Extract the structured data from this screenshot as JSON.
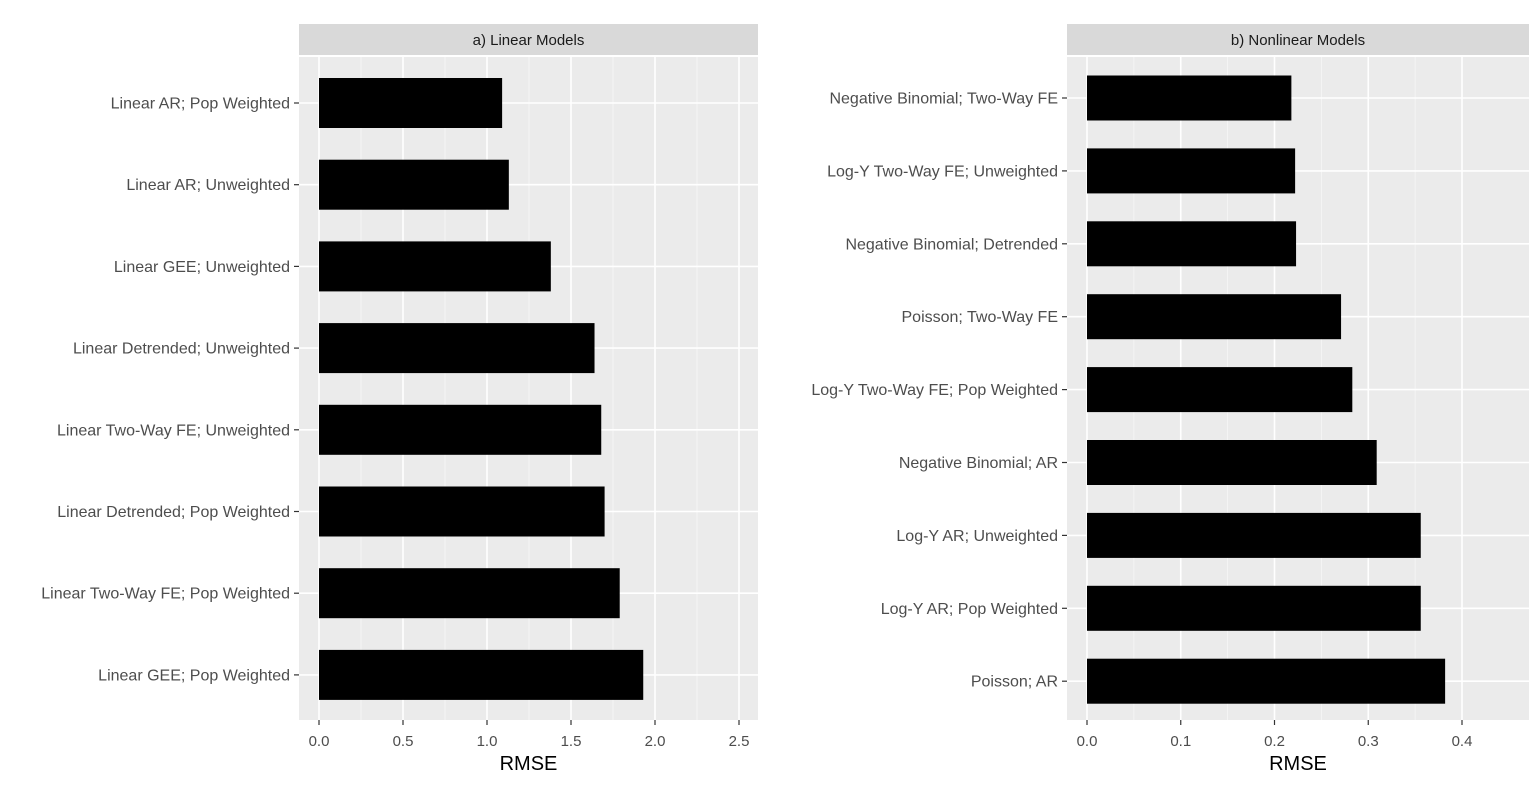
{
  "chart_data": [
    {
      "type": "bar",
      "orientation": "horizontal",
      "title": "a) Linear Models",
      "xlabel": "RMSE",
      "ylabel": "",
      "xlim": [
        0,
        2.5
      ],
      "xticks": [
        0.0,
        0.5,
        1.0,
        1.5,
        2.0,
        2.5
      ],
      "xtick_labels": [
        "0.0",
        "0.5",
        "1.0",
        "1.5",
        "2.0",
        "2.5"
      ],
      "grid": true,
      "legend": "none",
      "bar_color": "#000000",
      "categories": [
        "Linear AR; Pop Weighted",
        "Linear AR; Unweighted",
        "Linear GEE; Unweighted",
        "Linear Detrended; Unweighted",
        "Linear Two-Way FE; Unweighted",
        "Linear Detrended; Pop Weighted",
        "Linear Two-Way FE; Pop Weighted",
        "Linear GEE; Pop Weighted"
      ],
      "values": [
        1.09,
        1.13,
        1.38,
        1.64,
        1.68,
        1.7,
        1.79,
        1.93
      ]
    },
    {
      "type": "bar",
      "orientation": "horizontal",
      "title": "b) Nonlinear Models",
      "xlabel": "RMSE",
      "ylabel": "",
      "xlim": [
        0,
        0.4
      ],
      "xticks": [
        0.0,
        0.1,
        0.2,
        0.3,
        0.4
      ],
      "xtick_labels": [
        "0.0",
        "0.1",
        "0.2",
        "0.3",
        "0.4"
      ],
      "grid": true,
      "legend": "none",
      "bar_color": "#000000",
      "categories": [
        "Negative Binomial; Two-Way FE",
        "Log-Y Two-Way FE; Unweighted",
        "Negative Binomial; Detrended",
        "Poisson; Two-Way FE",
        "Log-Y Two-Way FE; Pop Weighted",
        "Negative Binomial; AR",
        "Log-Y AR; Unweighted",
        "Log-Y AR; Pop Weighted",
        "Poisson; AR"
      ],
      "values": [
        0.218,
        0.222,
        0.223,
        0.271,
        0.283,
        0.309,
        0.356,
        0.356,
        0.382
      ]
    }
  ],
  "colors": {
    "panel_bg": "#ebebeb",
    "strip_bg": "#d9d9d9",
    "grid": "#ffffff",
    "bar": "#000000"
  }
}
